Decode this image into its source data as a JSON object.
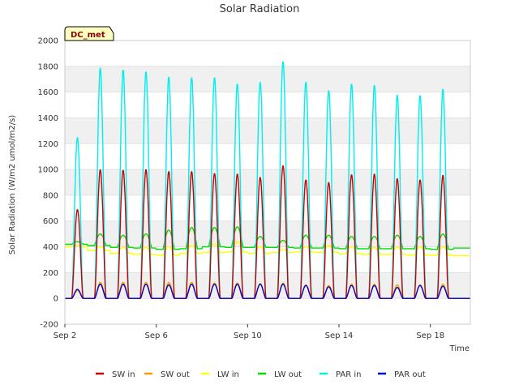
{
  "chart_data": {
    "type": "line",
    "title": "Solar Radiation",
    "xlabel": "Time",
    "ylabel": "Solar Radiation (W/m2 umol/m2/s)",
    "ylim": [
      -200,
      2000
    ],
    "xlim": [
      0,
      17.75
    ],
    "yticks": [
      -200,
      0,
      200,
      400,
      600,
      800,
      1000,
      1200,
      1400,
      1600,
      1800,
      2000
    ],
    "xticks": [
      {
        "pos": 0,
        "label": "Sep 2"
      },
      {
        "pos": 4,
        "label": "Sep 6"
      },
      {
        "pos": 8,
        "label": "Sep 10"
      },
      {
        "pos": 12,
        "label": "Sep 14"
      },
      {
        "pos": 16,
        "label": "Sep 18"
      }
    ],
    "grid": "horizontal bands",
    "legend_position": "bottom",
    "badge": "DC_met",
    "days": [
      2,
      3,
      4,
      5,
      6,
      7,
      8,
      9,
      10,
      11,
      12,
      13,
      14,
      15,
      16,
      17,
      18,
      19
    ],
    "series": [
      {
        "name": "SW in",
        "color": "#cc0000",
        "kind": "diurnal",
        "peaks": [
          690,
          1000,
          995,
          1000,
          985,
          985,
          970,
          965,
          940,
          1030,
          920,
          900,
          960,
          965,
          930,
          920,
          955,
          0
        ],
        "base": 0
      },
      {
        "name": "SW out",
        "color": "#ff9900",
        "kind": "diurnal",
        "peaks": [
          60,
          125,
          125,
          125,
          125,
          125,
          120,
          120,
          115,
          120,
          105,
          100,
          110,
          110,
          105,
          105,
          110,
          0
        ],
        "base": 0
      },
      {
        "name": "LW in",
        "color": "#ffff00",
        "kind": "baseline",
        "night": [
          400,
          370,
          350,
          340,
          335,
          350,
          355,
          360,
          350,
          355,
          360,
          355,
          345,
          340,
          340,
          335,
          335,
          330
        ],
        "day": [
          410,
          400,
          395,
          395,
          400,
          410,
          420,
          440,
          400,
          380,
          400,
          410,
          400,
          395,
          395,
          400,
          400,
          330
        ]
      },
      {
        "name": "LW out",
        "color": "#00dd00",
        "kind": "baseline",
        "night": [
          420,
          410,
          395,
          390,
          380,
          385,
          400,
          395,
          395,
          395,
          390,
          390,
          385,
          385,
          385,
          385,
          380,
          390
        ],
        "day": [
          440,
          500,
          490,
          500,
          530,
          550,
          550,
          555,
          480,
          450,
          490,
          490,
          480,
          480,
          490,
          480,
          500,
          390
        ]
      },
      {
        "name": "PAR in",
        "color": "#00eeee",
        "kind": "diurnal",
        "peaks": [
          1250,
          1790,
          1775,
          1760,
          1720,
          1715,
          1715,
          1665,
          1680,
          1840,
          1680,
          1615,
          1665,
          1655,
          1580,
          1575,
          1625,
          0
        ],
        "base": 0
      },
      {
        "name": "PAR out",
        "color": "#0000cc",
        "kind": "diurnal",
        "peaks": [
          70,
          110,
          110,
          110,
          105,
          110,
          110,
          110,
          110,
          110,
          100,
          90,
          100,
          100,
          85,
          100,
          95,
          0
        ],
        "base": 0
      }
    ]
  }
}
